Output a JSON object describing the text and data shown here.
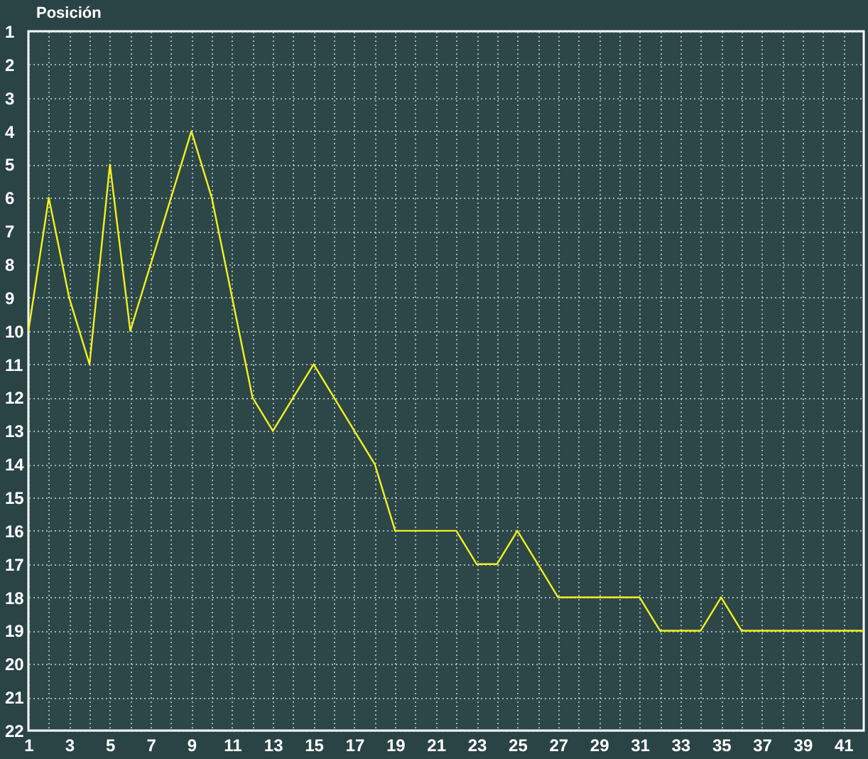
{
  "chart_data": {
    "type": "line",
    "ylabel": "Posición",
    "x": [
      1,
      2,
      3,
      4,
      5,
      6,
      7,
      8,
      9,
      10,
      11,
      12,
      13,
      14,
      15,
      16,
      17,
      18,
      19,
      20,
      21,
      22,
      23,
      24,
      25,
      26,
      27,
      28,
      29,
      30,
      31,
      32,
      33,
      34,
      35,
      36,
      37,
      38,
      39,
      40,
      41,
      42
    ],
    "values": [
      10,
      6,
      9,
      11,
      5,
      10,
      8,
      6,
      4,
      6,
      9,
      12,
      13,
      12,
      11,
      12,
      13,
      14,
      16,
      16,
      16,
      16,
      17,
      17,
      16,
      17,
      18,
      18,
      18,
      18,
      18,
      19,
      19,
      19,
      18,
      19,
      19,
      19,
      19,
      19,
      19,
      19
    ],
    "color": "#f2f21e",
    "xlim": [
      1,
      42
    ],
    "xticks": [
      1,
      {
        "value": 2,
        "label": null
      },
      3,
      {
        "value": 4,
        "label": null
      },
      5,
      {
        "value": 6,
        "label": null
      },
      7,
      {
        "value": 8,
        "label": null
      },
      9,
      {
        "value": 10,
        "label": null
      },
      11,
      {
        "value": 12,
        "label": null
      },
      13,
      {
        "value": 14,
        "label": null
      },
      15,
      {
        "value": 16,
        "label": null
      },
      17,
      {
        "value": 18,
        "label": null
      },
      19,
      {
        "value": 20,
        "label": null
      },
      21,
      {
        "value": 22,
        "label": null
      },
      23,
      {
        "value": 24,
        "label": null
      },
      25,
      {
        "value": 26,
        "label": null
      },
      27,
      {
        "value": 28,
        "label": null
      },
      29,
      {
        "value": 30,
        "label": null
      },
      31,
      {
        "value": 32,
        "label": null
      },
      33,
      {
        "value": 34,
        "label": null
      },
      35,
      {
        "value": 36,
        "label": null
      },
      37,
      {
        "value": 38,
        "label": null
      },
      39,
      {
        "value": 40,
        "label": null
      },
      41
    ],
    "ylim": [
      22,
      1
    ],
    "yticks": [
      1,
      2,
      3,
      4,
      5,
      6,
      7,
      8,
      9,
      10,
      11,
      12,
      13,
      14,
      15,
      16,
      17,
      18,
      19,
      20,
      21,
      22
    ],
    "grid": true
  }
}
